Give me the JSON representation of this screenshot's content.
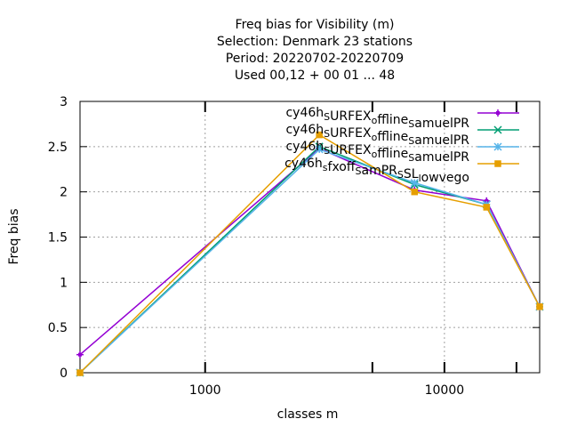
{
  "chart_data": {
    "type": "line",
    "title_lines": [
      "Freq bias  for Visibility (m)",
      "Selection: Denmark     23 stations",
      "Period: 20220702-20220709",
      "Used  00,12  + 00 01 ... 48"
    ],
    "xlabel": "classes m",
    "ylabel": "Freq bias",
    "x_scale": "log",
    "xlim": [
      300,
      25000
    ],
    "ylim": [
      0,
      3
    ],
    "x_ticks": [
      {
        "value": 1000,
        "label": "1000"
      },
      {
        "value": 10000,
        "label": "10000"
      }
    ],
    "x_minor_ticks": [
      5000,
      20000
    ],
    "y_ticks": [
      {
        "value": 0,
        "label": "0"
      },
      {
        "value": 0.5,
        "label": "0.5"
      },
      {
        "value": 1,
        "label": "1"
      },
      {
        "value": 1.5,
        "label": "1.5"
      },
      {
        "value": 2,
        "label": "2"
      },
      {
        "value": 2.5,
        "label": "2.5"
      },
      {
        "value": 3,
        "label": "3"
      }
    ],
    "grid": true,
    "legend_position": "top-right",
    "series": [
      {
        "name": "cy46h_SURFEX_offline_samuelPR",
        "legend_parts": [
          {
            "t": "cy46h"
          },
          {
            "t": "S",
            "sub": true
          },
          {
            "t": "URFEX"
          },
          {
            "t": "o",
            "sub": true
          },
          {
            "t": "ffline"
          },
          {
            "t": "S",
            "sub": true
          },
          {
            "t": "amuelPR"
          }
        ],
        "color": "#9400d3",
        "marker": "plus",
        "x": [
          300,
          3000,
          7500,
          15000,
          25000
        ],
        "y": [
          0.2,
          2.48,
          2.02,
          1.9,
          0.73
        ]
      },
      {
        "name": "cy46h_SURFEX_offline_samuelPR",
        "legend_parts": [
          {
            "t": "cy46h"
          },
          {
            "t": "S",
            "sub": true
          },
          {
            "t": "URFEX"
          },
          {
            "t": "o",
            "sub": true
          },
          {
            "t": "ffline"
          },
          {
            "t": "S",
            "sub": true
          },
          {
            "t": "amuelPR"
          }
        ],
        "color": "#009e73",
        "marker": "x",
        "x": [
          300,
          3000,
          7500,
          15000,
          25000
        ],
        "y": [
          0.0,
          2.5,
          2.08,
          1.86,
          0.73
        ]
      },
      {
        "name": "cy46h_SURFEX_offline_samuelPR",
        "legend_parts": [
          {
            "t": "cy46h"
          },
          {
            "t": "S",
            "sub": true
          },
          {
            "t": "URFEX"
          },
          {
            "t": "o",
            "sub": true
          },
          {
            "t": "ffline"
          },
          {
            "t": "S",
            "sub": true
          },
          {
            "t": "amuelPR"
          }
        ],
        "color": "#56b4e9",
        "marker": "star",
        "x": [
          300,
          3000,
          7500,
          15000,
          25000
        ],
        "y": [
          0.0,
          2.47,
          2.1,
          1.86,
          0.73
        ]
      },
      {
        "name": "cy46h_fxoff_samPR_SL_lowvego",
        "legend_parts": [
          {
            "t": "cy46h"
          },
          {
            "t": "s",
            "sub": true
          },
          {
            "t": "fxoff"
          },
          {
            "t": "S",
            "sub": true
          },
          {
            "t": "amPR"
          },
          {
            "t": "S",
            "sub": true
          },
          {
            "t": "SL"
          },
          {
            "t": "l",
            "sub": true
          },
          {
            "t": "owvego"
          }
        ],
        "color": "#e69f00",
        "marker": "box",
        "x": [
          300,
          3000,
          7500,
          15000,
          25000
        ],
        "y": [
          0.0,
          2.63,
          2.0,
          1.83,
          0.73
        ]
      }
    ]
  }
}
